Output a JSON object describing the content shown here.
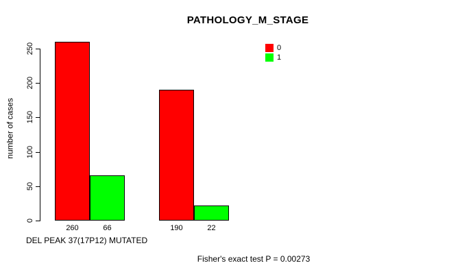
{
  "chart_data": {
    "type": "bar",
    "title": "PATHOLOGY_M_STAGE",
    "ylabel": "number of cases",
    "xlabel": "DEL PEAK 37(17P12) MUTATED",
    "annotation": "Fisher's exact test P = 0.00273",
    "series": [
      {
        "name": "0",
        "color": "#ff0000",
        "values": [
          260,
          190
        ]
      },
      {
        "name": "1",
        "color": "#00ff00",
        "values": [
          66,
          22
        ]
      }
    ],
    "bar_value_labels": [
      "260",
      "66",
      "190",
      "22"
    ],
    "yticks": [
      0,
      50,
      100,
      150,
      200,
      250
    ],
    "ylim": [
      0,
      260
    ],
    "grid": false,
    "legend_position": "top-right",
    "legend_entries": [
      "0",
      "1"
    ]
  }
}
